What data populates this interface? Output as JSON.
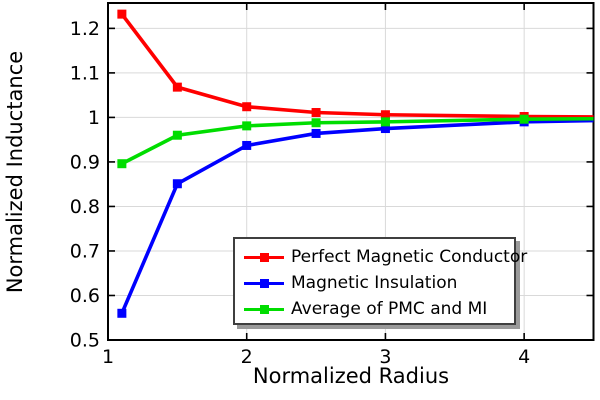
{
  "chart_data": {
    "type": "line",
    "xlabel": "Normalized Radius",
    "ylabel": "Normalized Inductance",
    "xlim": [
      1,
      4.5
    ],
    "ylim": [
      0.5,
      1.257
    ],
    "xticks": [
      1,
      2,
      3,
      4
    ],
    "yticks": [
      0.5,
      0.6,
      0.7,
      0.8,
      0.9,
      1.0,
      1.1,
      1.2
    ],
    "xtick_labels": [
      "1",
      "2",
      "3",
      "4"
    ],
    "ytick_labels": [
      "0.5",
      "0.6",
      "0.7",
      "0.8",
      "0.9",
      "1",
      "1.1",
      "1.2"
    ],
    "grid": true,
    "grid_color": "#d9d9d9",
    "axis_color": "#000000",
    "background_color": "#ffffff",
    "legend_position": "bottom-right-inside",
    "marker_shape": "square",
    "marker_max_x": 4,
    "x": [
      1.1,
      1.5,
      2,
      2.5,
      3,
      4,
      4.5
    ],
    "series": [
      {
        "name": "Perfect Magnetic Conductor",
        "color": "#ff0000",
        "marker": "square",
        "values": [
          1.232,
          1.068,
          1.024,
          1.011,
          1.006,
          1.002,
          1.001
        ]
      },
      {
        "name": "Magnetic Insulation",
        "color": "#0000ff",
        "marker": "square",
        "values": [
          0.56,
          0.851,
          0.937,
          0.964,
          0.975,
          0.99,
          0.993
        ]
      },
      {
        "name": "Average of PMC and MI",
        "color": "#00dd00",
        "marker": "square",
        "values": [
          0.896,
          0.96,
          0.981,
          0.988,
          0.99,
          0.996,
          0.997
        ]
      }
    ]
  }
}
